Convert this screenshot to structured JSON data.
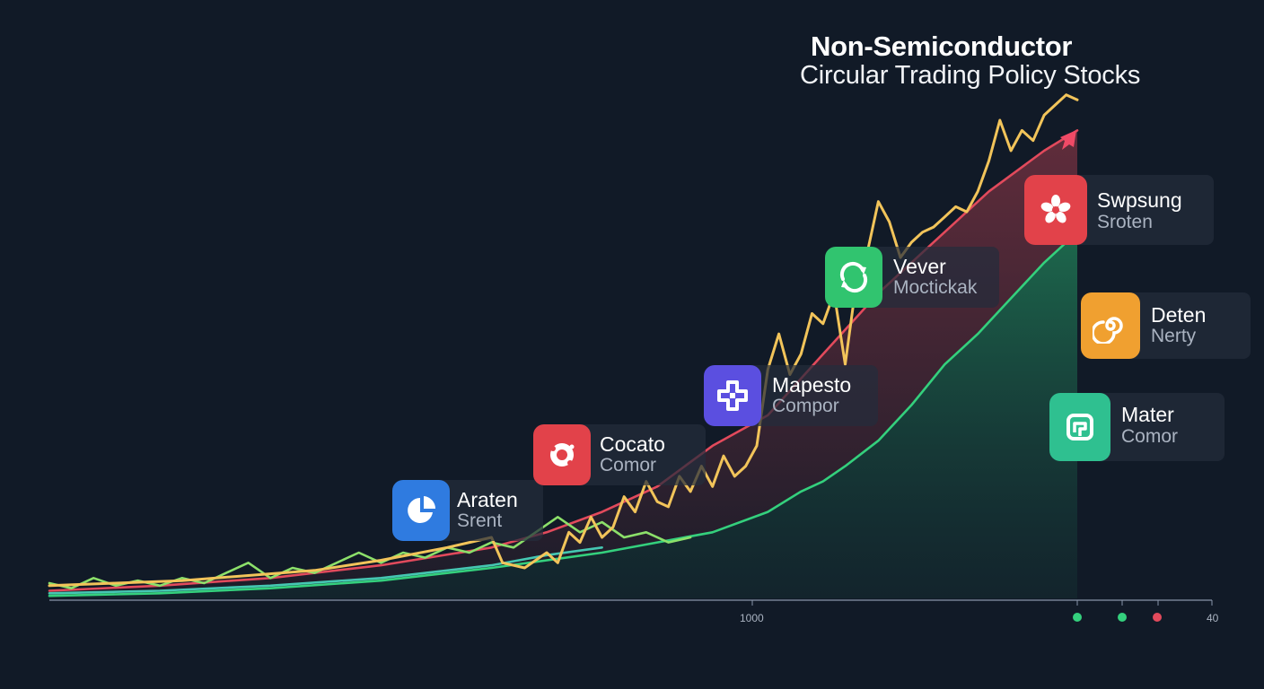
{
  "title": "Non-Semiconductor",
  "subtitle": "Circular Trading Policy Stocks",
  "x_ticks": [
    "1000",
    "40"
  ],
  "colors": {
    "background": "#111a27",
    "yellow": "#f2c45a",
    "red": "#e24a5c",
    "green": "#34d07d",
    "teal": "#45c7b2",
    "lime": "#8ce06a"
  },
  "stocks": [
    {
      "name": "Araten",
      "sub": "Srent",
      "color": "#2f7be0",
      "icon": "pie-chart-icon"
    },
    {
      "name": "Cocato",
      "sub": "Comor",
      "color": "#e2424a",
      "icon": "flower-blob-icon"
    },
    {
      "name": "Mapesto",
      "sub": "Compor",
      "color": "#5b4fe0",
      "icon": "cross-puzzle-icon"
    },
    {
      "name": "Vever",
      "sub": "Moctickak",
      "color": "#31c46f",
      "icon": "circular-arrows-icon"
    },
    {
      "name": "Swpsung",
      "sub": "Sroten",
      "color": "#e2424a",
      "icon": "flower-icon"
    },
    {
      "name": "Deten",
      "sub": "Nerty",
      "color": "#f0a030",
      "icon": "spiral-icon"
    },
    {
      "name": "Mater",
      "sub": "Comor",
      "color": "#2fc090",
      "icon": "square-loop-icon"
    }
  ],
  "legend_dots": [
    "#34d07d",
    "#34d07d",
    "#e24a5c"
  ],
  "chart_data": {
    "type": "line",
    "title": "Non-Semiconductor",
    "subtitle": "Circular Trading Policy Stocks",
    "x_tick_labels": [
      "1000",
      "40"
    ],
    "ylim": [
      0,
      100
    ],
    "series": [
      {
        "color": "#f2c45a",
        "points": [
          [
            0,
            2.5
          ],
          [
            6,
            3
          ],
          [
            12,
            3.5
          ],
          [
            18,
            4.5
          ],
          [
            24,
            5.5
          ],
          [
            30,
            7.5
          ],
          [
            36,
            10
          ],
          [
            40,
            12
          ],
          [
            41,
            7
          ],
          [
            43,
            6
          ],
          [
            45,
            9
          ],
          [
            46,
            7
          ],
          [
            47,
            13
          ],
          [
            48,
            11
          ],
          [
            49,
            16
          ],
          [
            50,
            12
          ],
          [
            51,
            14
          ],
          [
            52,
            20
          ],
          [
            53,
            17
          ],
          [
            54,
            23
          ],
          [
            55,
            19
          ],
          [
            56,
            18
          ],
          [
            57,
            24
          ],
          [
            58,
            21
          ],
          [
            59,
            26
          ],
          [
            60,
            22
          ],
          [
            61,
            28
          ],
          [
            62,
            24
          ],
          [
            63,
            26
          ],
          [
            64,
            30
          ],
          [
            65,
            45
          ],
          [
            66,
            52
          ],
          [
            67,
            44
          ],
          [
            68,
            48
          ],
          [
            69,
            56
          ],
          [
            70,
            54
          ],
          [
            71,
            60
          ],
          [
            72,
            46
          ],
          [
            73,
            62
          ],
          [
            74,
            68
          ],
          [
            75,
            78
          ],
          [
            76,
            74
          ],
          [
            77,
            67
          ],
          [
            78,
            70
          ],
          [
            79,
            72
          ],
          [
            80,
            73
          ],
          [
            81,
            75
          ],
          [
            82,
            77
          ],
          [
            83,
            76
          ],
          [
            84,
            80
          ],
          [
            85,
            86
          ],
          [
            86,
            94
          ],
          [
            87,
            88
          ],
          [
            88,
            92
          ],
          [
            89,
            90
          ],
          [
            90,
            95
          ],
          [
            91,
            97
          ],
          [
            92,
            99
          ],
          [
            93,
            98
          ]
        ]
      },
      {
        "color": "#e24a5c",
        "points": [
          [
            0,
            1.5
          ],
          [
            10,
            2.5
          ],
          [
            20,
            4
          ],
          [
            30,
            6.5
          ],
          [
            40,
            10
          ],
          [
            45,
            13
          ],
          [
            50,
            17
          ],
          [
            55,
            22
          ],
          [
            60,
            30
          ],
          [
            65,
            36
          ],
          [
            70,
            48
          ],
          [
            75,
            60
          ],
          [
            80,
            70
          ],
          [
            85,
            80
          ],
          [
            90,
            88
          ],
          [
            93,
            92
          ]
        ]
      },
      {
        "color": "#34d07d",
        "points": [
          [
            0,
            0.5
          ],
          [
            10,
            1
          ],
          [
            20,
            2
          ],
          [
            30,
            3.5
          ],
          [
            40,
            6
          ],
          [
            50,
            9
          ],
          [
            55,
            11
          ],
          [
            60,
            13
          ],
          [
            65,
            17
          ],
          [
            68,
            21
          ],
          [
            70,
            23
          ],
          [
            72,
            26
          ],
          [
            75,
            31
          ],
          [
            78,
            38
          ],
          [
            81,
            46
          ],
          [
            84,
            52
          ],
          [
            87,
            59
          ],
          [
            90,
            66
          ],
          [
            93,
            72
          ]
        ]
      },
      {
        "color": "#45c7b2",
        "points": [
          [
            0,
            1
          ],
          [
            10,
            1.5
          ],
          [
            20,
            2.5
          ],
          [
            30,
            4
          ],
          [
            40,
            6.5
          ],
          [
            45,
            8.5
          ],
          [
            50,
            10
          ]
        ]
      },
      {
        "color": "#8ce06a",
        "points": [
          [
            0,
            3
          ],
          [
            2,
            2
          ],
          [
            4,
            4
          ],
          [
            6,
            2.5
          ],
          [
            8,
            3.5
          ],
          [
            10,
            2.5
          ],
          [
            12,
            4
          ],
          [
            14,
            3
          ],
          [
            16,
            5
          ],
          [
            18,
            7
          ],
          [
            20,
            4
          ],
          [
            22,
            6
          ],
          [
            24,
            5
          ],
          [
            26,
            7
          ],
          [
            28,
            9
          ],
          [
            30,
            7
          ],
          [
            32,
            9
          ],
          [
            34,
            8
          ],
          [
            36,
            10
          ],
          [
            38,
            9
          ],
          [
            40,
            11
          ],
          [
            42,
            10
          ],
          [
            44,
            13
          ],
          [
            46,
            16
          ],
          [
            48,
            13
          ],
          [
            50,
            15
          ],
          [
            52,
            12
          ],
          [
            54,
            13
          ],
          [
            56,
            11
          ],
          [
            58,
            12
          ]
        ]
      }
    ]
  }
}
